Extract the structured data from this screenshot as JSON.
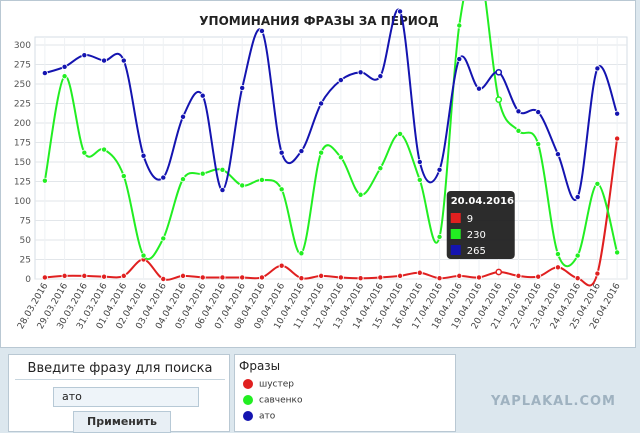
{
  "chart_data": {
    "type": "line",
    "title": "УПОМИНАНИЯ ФРАЗЫ ЗА ПЕРИОД",
    "ylim": [
      0,
      300
    ],
    "y_ticks": [
      "0",
      "25",
      "50",
      "75",
      "100",
      "125",
      "150",
      "175",
      "200",
      "225",
      "250",
      "275",
      "300"
    ],
    "categories": [
      "28.03.2016",
      "29.03.2016",
      "30.03.2016",
      "31.03.2016",
      "01.04.2016",
      "02.04.2016",
      "03.04.2016",
      "04.04.2016",
      "05.04.2016",
      "06.04.2016",
      "07.04.2016",
      "08.04.2016",
      "09.04.2016",
      "10.04.2016",
      "11.04.2016",
      "12.04.2016",
      "13.04.2016",
      "14.04.2016",
      "15.04.2016",
      "16.04.2016",
      "17.04.2016",
      "18.04.2016",
      "19.04.2016",
      "20.04.2016",
      "21.04.2016",
      "22.04.2016",
      "23.04.2016",
      "24.04.2016",
      "25.04.2016",
      "26.04.2016"
    ],
    "series": [
      {
        "name": "шустер",
        "color": "#e02020",
        "values": [
          2,
          4,
          4,
          3,
          4,
          25,
          0,
          4,
          2,
          2,
          2,
          2,
          17,
          1,
          4,
          2,
          1,
          2,
          4,
          8,
          1,
          4,
          2,
          9,
          4,
          3,
          15,
          1,
          7,
          180
        ]
      },
      {
        "name": "савченко",
        "color": "#22ee22",
        "values": [
          126,
          260,
          162,
          166,
          132,
          30,
          52,
          128,
          135,
          140,
          120,
          127,
          115,
          33,
          162,
          156,
          108,
          142,
          186,
          127,
          54,
          325,
          400,
          230,
          190,
          173,
          32,
          30,
          122,
          34
        ]
      },
      {
        "name": "ато",
        "color": "#1414b0",
        "values": [
          264,
          272,
          287,
          280,
          280,
          158,
          130,
          208,
          235,
          114,
          245,
          318,
          162,
          164,
          225,
          255,
          265,
          260,
          343,
          150,
          140,
          282,
          244,
          265,
          215,
          214,
          160,
          105,
          270,
          212
        ]
      }
    ],
    "grid": true,
    "tooltip": {
      "date": "20.04.2016",
      "rows": [
        "9",
        "230",
        "265"
      ]
    }
  },
  "search": {
    "title": "Введите фразу для поиска",
    "value": "ато",
    "button": "Применить"
  },
  "legend": {
    "title": "Фразы",
    "items": [
      "шустер",
      "савченко",
      "ато"
    ]
  },
  "watermark": "YAPLAKAL.COM"
}
